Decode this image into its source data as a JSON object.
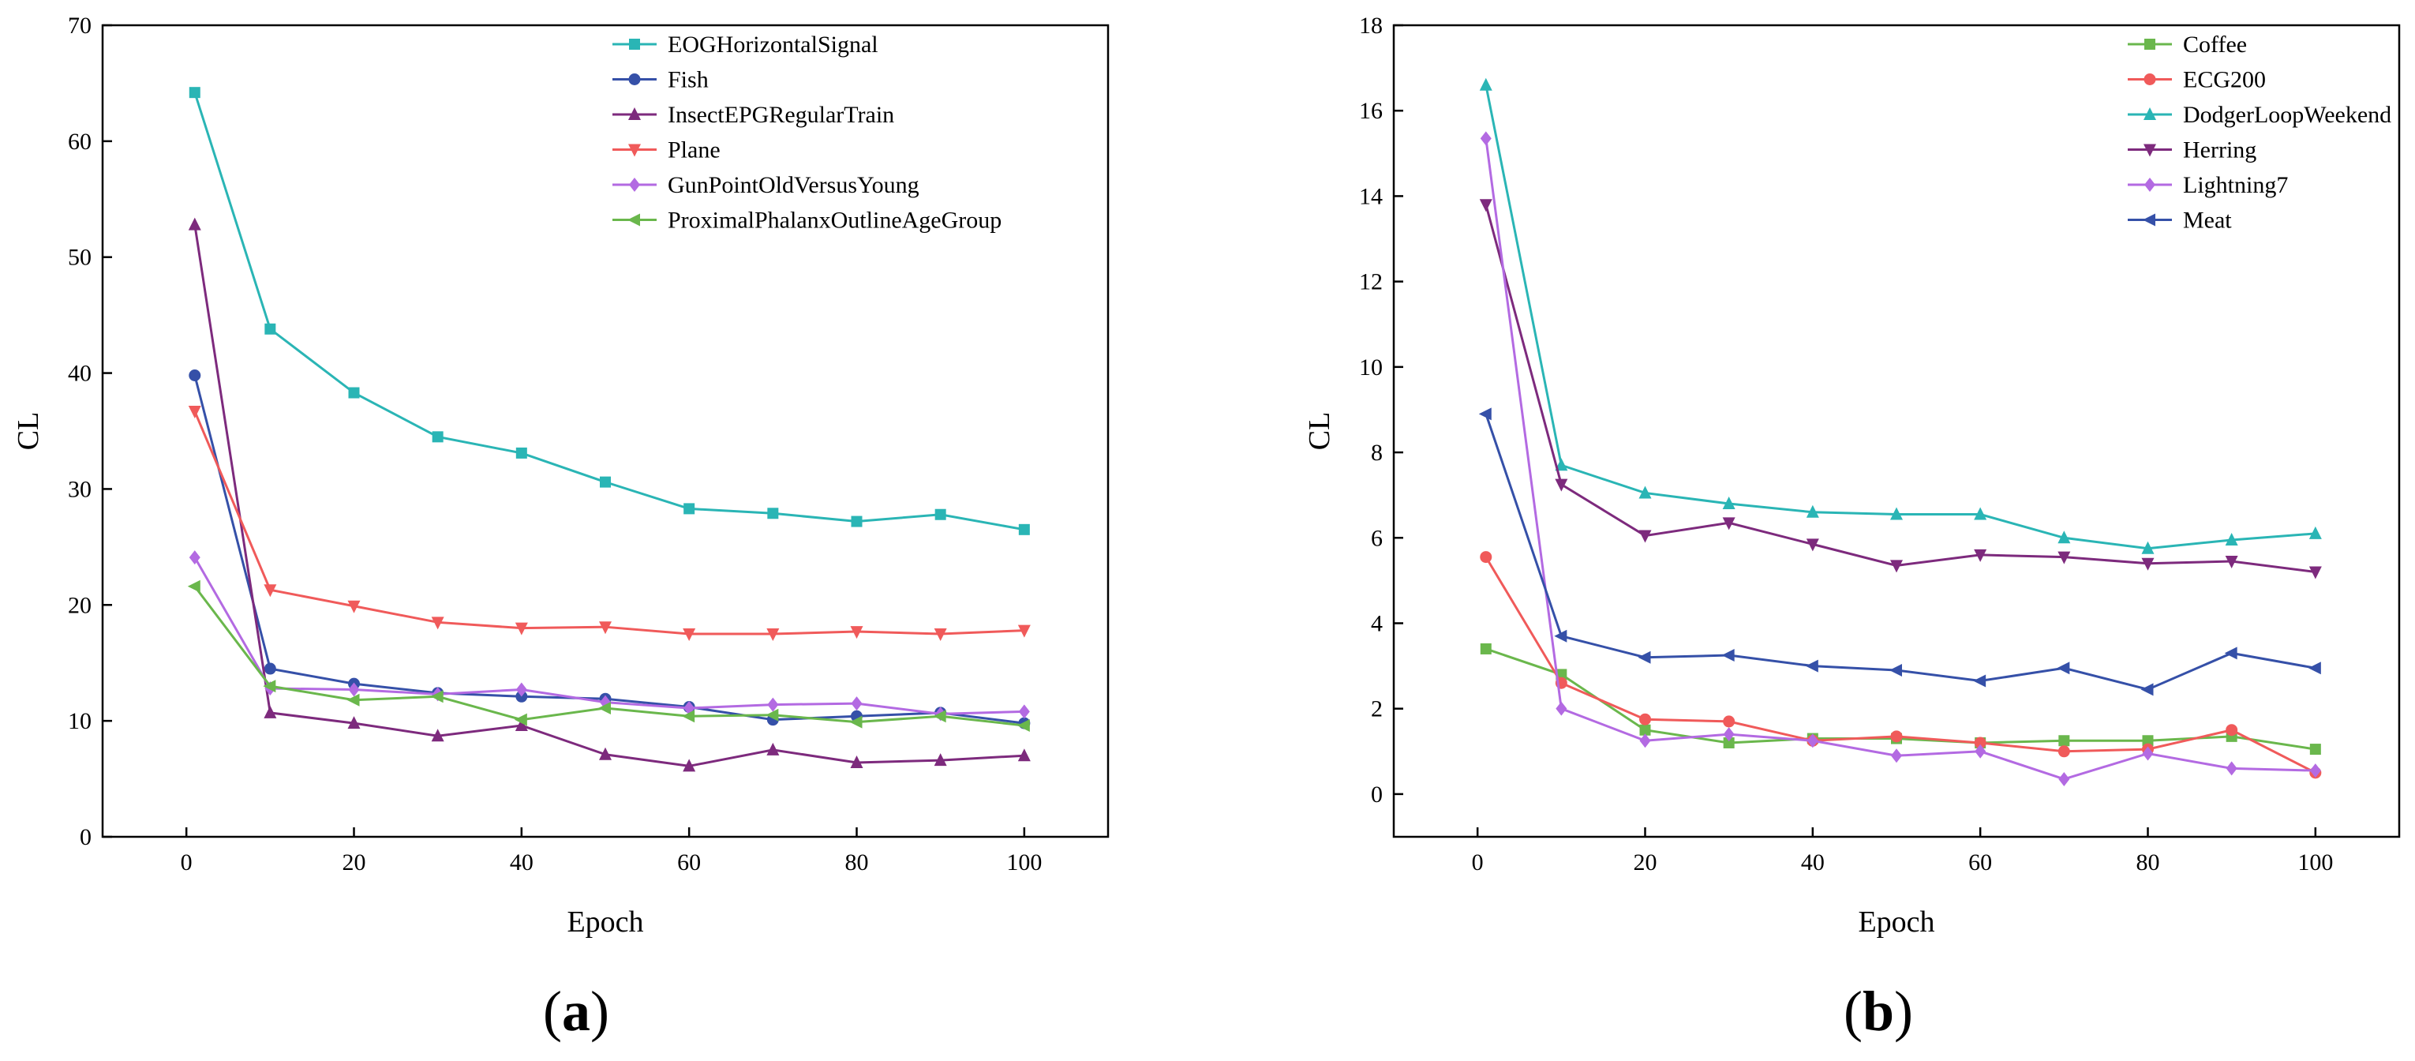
{
  "chart_data": [
    {
      "type": "line",
      "panel_label": {
        "open": "(",
        "letter": "a",
        "close": ")"
      },
      "xlabel": "Epoch",
      "ylabel": "CL",
      "xlim": [
        -10,
        110
      ],
      "ylim": [
        0,
        70
      ],
      "xticks": [
        0,
        20,
        40,
        60,
        80,
        100
      ],
      "yticks": [
        0,
        10,
        20,
        30,
        40,
        50,
        60,
        70
      ],
      "legend_position": "top-right",
      "x": [
        1,
        10,
        20,
        30,
        40,
        50,
        60,
        70,
        80,
        90,
        100
      ],
      "series": [
        {
          "name": "EOGHorizontalSignal",
          "color": "#2ab5b5",
          "marker": "square",
          "values": [
            64.2,
            43.8,
            38.3,
            34.5,
            33.1,
            30.6,
            28.3,
            27.9,
            27.2,
            27.8,
            26.5
          ]
        },
        {
          "name": "Fish",
          "color": "#3550a8",
          "marker": "circle",
          "values": [
            39.8,
            14.5,
            13.2,
            12.4,
            12.1,
            11.9,
            11.2,
            10.1,
            10.4,
            10.7,
            9.8
          ]
        },
        {
          "name": "InsectEPGRegularTrain",
          "color": "#7d2a7d",
          "marker": "triangle-up",
          "values": [
            52.8,
            10.7,
            9.8,
            8.7,
            9.6,
            7.1,
            6.1,
            7.5,
            6.4,
            6.6,
            7.0
          ]
        },
        {
          "name": "Plane",
          "color": "#f05a5a",
          "marker": "triangle-down",
          "values": [
            36.7,
            21.3,
            19.9,
            18.5,
            18.0,
            18.1,
            17.5,
            17.5,
            17.7,
            17.5,
            17.8
          ]
        },
        {
          "name": "GunPointOldVersusYoung",
          "color": "#b36ae2",
          "marker": "diamond",
          "values": [
            24.1,
            12.8,
            12.7,
            12.3,
            12.7,
            11.6,
            11.1,
            11.4,
            11.5,
            10.6,
            10.8
          ]
        },
        {
          "name": "ProximalPhalanxOutlineAgeGroup",
          "color": "#6ab74c",
          "marker": "triangle-left",
          "values": [
            21.6,
            13.0,
            11.8,
            12.1,
            10.1,
            11.1,
            10.4,
            10.5,
            9.9,
            10.4,
            9.6
          ]
        }
      ]
    },
    {
      "type": "line",
      "panel_label": {
        "open": "(",
        "letter": "b",
        "close": ")"
      },
      "xlabel": "Epoch",
      "ylabel": "CL",
      "xlim": [
        -10,
        110
      ],
      "ylim": [
        -1,
        18
      ],
      "xticks": [
        0,
        20,
        40,
        60,
        80,
        100
      ],
      "yticks": [
        0,
        2,
        4,
        6,
        8,
        10,
        12,
        14,
        16,
        18
      ],
      "legend_position": "top-right",
      "x": [
        1,
        10,
        20,
        30,
        40,
        50,
        60,
        70,
        80,
        90,
        100
      ],
      "series": [
        {
          "name": "Coffee",
          "color": "#6ab74c",
          "marker": "square",
          "values": [
            3.4,
            2.8,
            1.5,
            1.2,
            1.3,
            1.3,
            1.2,
            1.25,
            1.25,
            1.35,
            1.05
          ]
        },
        {
          "name": "ECG200",
          "color": "#f05a5a",
          "marker": "circle",
          "values": [
            5.55,
            2.6,
            1.75,
            1.7,
            1.25,
            1.35,
            1.2,
            1.0,
            1.05,
            1.5,
            0.5
          ]
        },
        {
          "name": "DodgerLoopWeekend",
          "color": "#2ab5b5",
          "marker": "triangle-up",
          "values": [
            16.6,
            7.7,
            7.05,
            6.8,
            6.6,
            6.55,
            6.55,
            6.0,
            5.75,
            5.95,
            6.1
          ]
        },
        {
          "name": "Herring",
          "color": "#7d2a7d",
          "marker": "triangle-down",
          "values": [
            13.8,
            7.25,
            6.05,
            6.35,
            5.85,
            5.35,
            5.6,
            5.55,
            5.4,
            5.45,
            5.2
          ]
        },
        {
          "name": "Lightning7",
          "color": "#b36ae2",
          "marker": "diamond",
          "values": [
            15.35,
            2.0,
            1.25,
            1.4,
            1.25,
            0.9,
            1.0,
            0.35,
            0.95,
            0.6,
            0.55
          ]
        },
        {
          "name": "Meat",
          "color": "#3550a8",
          "marker": "triangle-left",
          "values": [
            8.9,
            3.7,
            3.2,
            3.25,
            3.0,
            2.9,
            2.65,
            2.95,
            2.45,
            3.3,
            2.95
          ]
        }
      ]
    }
  ]
}
